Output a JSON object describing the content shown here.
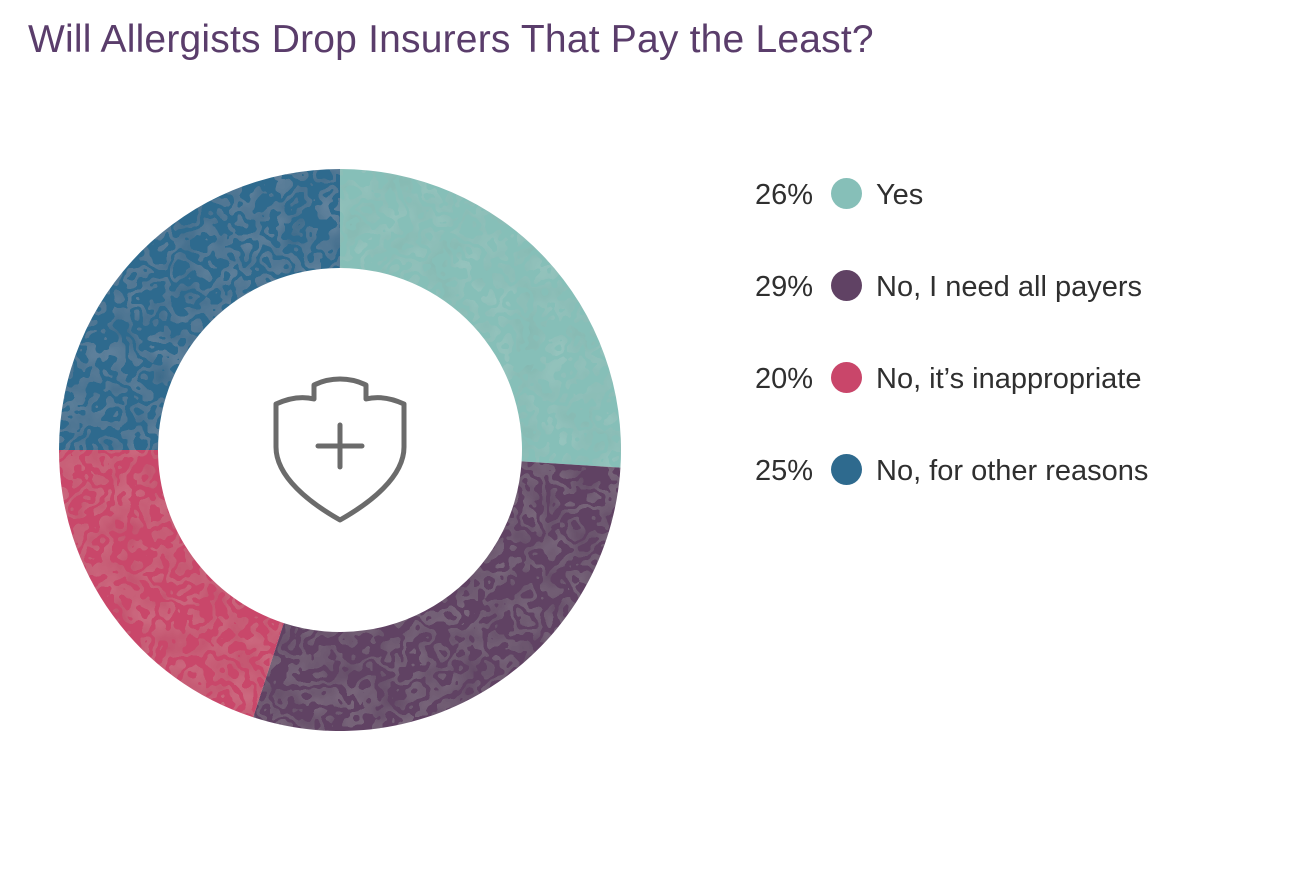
{
  "chart_data": {
    "type": "pie",
    "title": "Will Allergists Drop Insurers That Pay the Least?",
    "donut": true,
    "center_icon": "shield-plus-icon",
    "slices": [
      {
        "label": "Yes",
        "value": 26,
        "value_label": "26%",
        "color": "#86bfb8"
      },
      {
        "label": "No, I need all payers",
        "value": 29,
        "value_label": "29%",
        "color": "#604264"
      },
      {
        "label": "No, it’s inappropriate",
        "value": 20,
        "value_label": "20%",
        "color": "#c9466a"
      },
      {
        "label": "No, for other reasons",
        "value": 25,
        "value_label": "25%",
        "color": "#2e6a8e"
      }
    ],
    "legend_position": "right"
  },
  "colors": {
    "title": "#5a3d6b",
    "text": "#2f2f2f",
    "icon": "#6b6b6b"
  }
}
